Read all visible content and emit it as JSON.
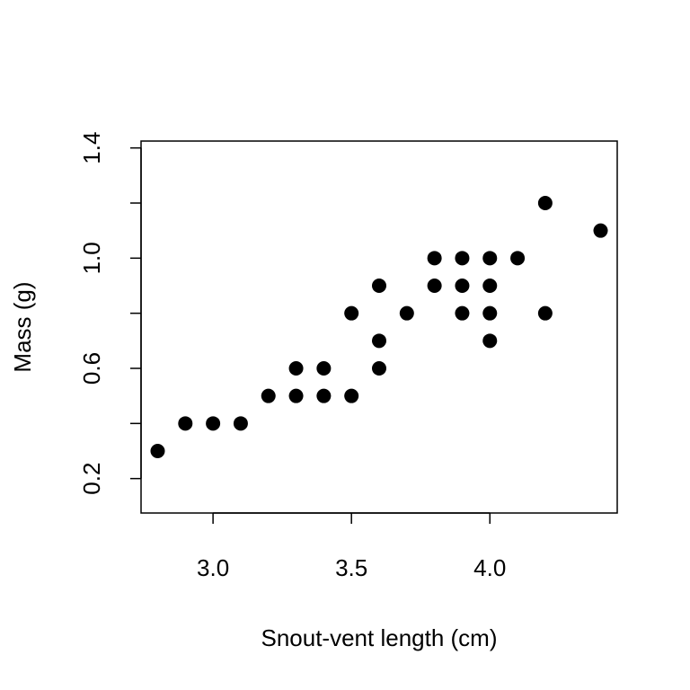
{
  "chart_data": {
    "type": "scatter",
    "title": "",
    "xlabel": "Snout-vent length (cm)",
    "ylabel": "Mass (g)",
    "xlim": [
      2.74,
      4.46
    ],
    "ylim": [
      0.075,
      1.425
    ],
    "x_ticks": [
      3.0,
      3.5,
      4.0
    ],
    "x_tick_labels": [
      "3.0",
      "3.5",
      "4.0"
    ],
    "y_ticks": [
      0.2,
      0.4,
      0.6,
      0.8,
      1.0,
      1.2,
      1.4
    ],
    "y_tick_labels": [
      "0.2",
      "",
      "0.6",
      "",
      "1.0",
      "",
      "1.4"
    ],
    "grid": false,
    "marker_color": "#000000",
    "points": [
      {
        "x": 2.8,
        "y": 0.3
      },
      {
        "x": 2.9,
        "y": 0.4
      },
      {
        "x": 3.0,
        "y": 0.4
      },
      {
        "x": 3.1,
        "y": 0.4
      },
      {
        "x": 3.2,
        "y": 0.5
      },
      {
        "x": 3.3,
        "y": 0.5
      },
      {
        "x": 3.3,
        "y": 0.6
      },
      {
        "x": 3.4,
        "y": 0.5
      },
      {
        "x": 3.4,
        "y": 0.6
      },
      {
        "x": 3.5,
        "y": 0.5
      },
      {
        "x": 3.5,
        "y": 0.8
      },
      {
        "x": 3.6,
        "y": 0.6
      },
      {
        "x": 3.6,
        "y": 0.7
      },
      {
        "x": 3.6,
        "y": 0.9
      },
      {
        "x": 3.7,
        "y": 0.8
      },
      {
        "x": 3.8,
        "y": 0.9
      },
      {
        "x": 3.8,
        "y": 1.0
      },
      {
        "x": 3.9,
        "y": 0.8
      },
      {
        "x": 3.9,
        "y": 0.9
      },
      {
        "x": 3.9,
        "y": 1.0
      },
      {
        "x": 4.0,
        "y": 0.7
      },
      {
        "x": 4.0,
        "y": 0.8
      },
      {
        "x": 4.0,
        "y": 0.9
      },
      {
        "x": 4.0,
        "y": 1.0
      },
      {
        "x": 4.1,
        "y": 1.0
      },
      {
        "x": 4.2,
        "y": 0.8
      },
      {
        "x": 4.2,
        "y": 1.2
      },
      {
        "x": 4.4,
        "y": 1.1
      }
    ]
  }
}
